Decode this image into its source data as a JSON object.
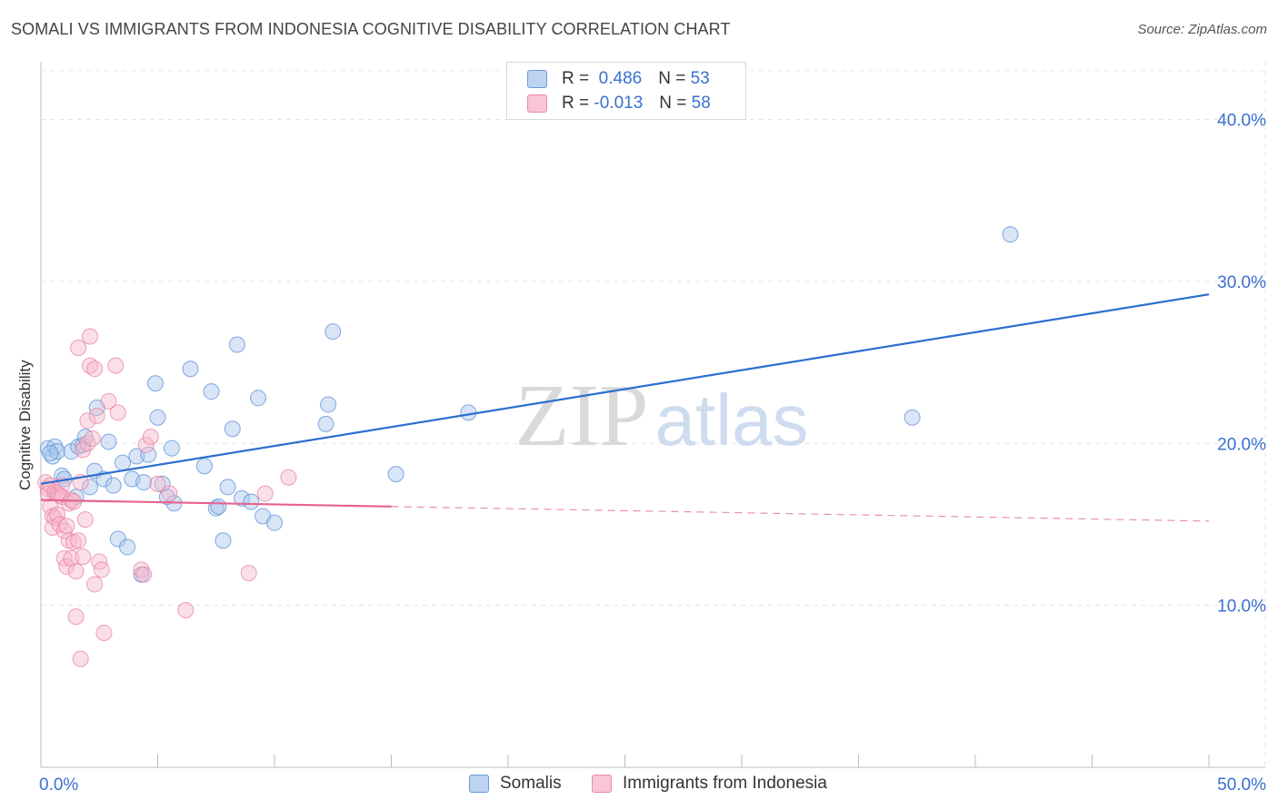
{
  "title": "SOMALI VS IMMIGRANTS FROM INDONESIA COGNITIVE DISABILITY CORRELATION CHART",
  "source": "Source: ZipAtlas.com",
  "watermark": {
    "zip": "ZIP",
    "atlas": "atlas"
  },
  "stats": [
    {
      "r_label": "R =",
      "r_value": "0.486",
      "n_label": "N =",
      "n_value": "53"
    },
    {
      "r_label": "R =",
      "r_value": "-0.013",
      "n_label": "N =",
      "n_value": "58"
    }
  ],
  "chart_data": {
    "type": "scatter",
    "title": "SOMALI VS IMMIGRANTS FROM INDONESIA COGNITIVE DISABILITY CORRELATION CHART",
    "xlabel": "",
    "ylabel": "Cognitive Disability",
    "xlim": [
      0,
      50
    ],
    "ylim": [
      0,
      43
    ],
    "x_tick_labels": [
      "0.0%",
      "50.0%"
    ],
    "y_ticks": [
      10,
      20,
      30,
      40
    ],
    "y_tick_labels": [
      "10.0%",
      "20.0%",
      "30.0%",
      "40.0%"
    ],
    "grid": "horizontal dashed",
    "legend_position": "bottom-center",
    "series": [
      {
        "name": "Somalis",
        "color": "#5b8fd6",
        "fill": "#a8c6ee",
        "points": [
          [
            0.3,
            19.7
          ],
          [
            0.5,
            19.2
          ],
          [
            0.6,
            19.8
          ],
          [
            0.7,
            19.5
          ],
          [
            0.9,
            18.0
          ],
          [
            1.0,
            17.8
          ],
          [
            1.3,
            19.5
          ],
          [
            1.5,
            16.7
          ],
          [
            1.6,
            19.8
          ],
          [
            1.8,
            19.9
          ],
          [
            1.9,
            20.4
          ],
          [
            2.1,
            17.3
          ],
          [
            2.3,
            18.3
          ],
          [
            2.4,
            22.2
          ],
          [
            2.7,
            17.8
          ],
          [
            2.9,
            20.1
          ],
          [
            3.1,
            17.4
          ],
          [
            3.3,
            14.1
          ],
          [
            3.5,
            18.8
          ],
          [
            3.7,
            13.6
          ],
          [
            3.9,
            17.8
          ],
          [
            4.1,
            19.2
          ],
          [
            4.3,
            11.9
          ],
          [
            4.4,
            17.6
          ],
          [
            4.6,
            19.3
          ],
          [
            4.9,
            23.7
          ],
          [
            5.0,
            21.6
          ],
          [
            5.2,
            17.5
          ],
          [
            5.4,
            16.7
          ],
          [
            5.6,
            19.7
          ],
          [
            5.7,
            16.3
          ],
          [
            6.4,
            24.6
          ],
          [
            7.0,
            18.6
          ],
          [
            7.3,
            23.2
          ],
          [
            7.5,
            16.0
          ],
          [
            7.6,
            16.1
          ],
          [
            7.8,
            14.0
          ],
          [
            8.0,
            17.3
          ],
          [
            8.2,
            20.9
          ],
          [
            8.4,
            26.1
          ],
          [
            8.6,
            16.6
          ],
          [
            9.0,
            16.4
          ],
          [
            9.3,
            22.8
          ],
          [
            9.5,
            15.5
          ],
          [
            10.0,
            15.1
          ],
          [
            12.2,
            21.2
          ],
          [
            12.3,
            22.4
          ],
          [
            12.5,
            26.9
          ],
          [
            15.2,
            18.1
          ],
          [
            18.3,
            21.9
          ],
          [
            37.3,
            21.6
          ],
          [
            41.5,
            32.9
          ],
          [
            0.4,
            19.4
          ]
        ],
        "trend": {
          "x": [
            0.0,
            50.0
          ],
          "y": [
            17.5,
            29.2
          ]
        }
      },
      {
        "name": "Immigrants from Indonesia",
        "color": "#e7809f",
        "fill": "#f6b9cb",
        "points": [
          [
            0.2,
            17.6
          ],
          [
            0.3,
            17.2
          ],
          [
            0.3,
            16.9
          ],
          [
            0.4,
            17.4
          ],
          [
            0.4,
            16.1
          ],
          [
            0.5,
            15.5
          ],
          [
            0.5,
            14.8
          ],
          [
            0.6,
            17.0
          ],
          [
            0.6,
            15.4
          ],
          [
            0.7,
            16.9
          ],
          [
            0.7,
            15.6
          ],
          [
            0.8,
            15.0
          ],
          [
            0.8,
            16.8
          ],
          [
            0.9,
            17.4
          ],
          [
            0.9,
            16.7
          ],
          [
            1.0,
            12.9
          ],
          [
            1.0,
            14.6
          ],
          [
            1.1,
            14.9
          ],
          [
            1.1,
            12.4
          ],
          [
            1.2,
            16.3
          ],
          [
            1.2,
            14.0
          ],
          [
            1.3,
            16.5
          ],
          [
            1.3,
            12.9
          ],
          [
            1.4,
            16.4
          ],
          [
            1.4,
            13.9
          ],
          [
            1.5,
            12.1
          ],
          [
            1.5,
            9.3
          ],
          [
            1.6,
            14.0
          ],
          [
            1.6,
            25.9
          ],
          [
            1.7,
            17.6
          ],
          [
            1.7,
            6.7
          ],
          [
            1.8,
            13.0
          ],
          [
            1.8,
            19.6
          ],
          [
            1.9,
            15.3
          ],
          [
            2.0,
            20.0
          ],
          [
            2.0,
            21.4
          ],
          [
            2.1,
            26.6
          ],
          [
            2.1,
            24.8
          ],
          [
            2.2,
            20.3
          ],
          [
            2.3,
            11.3
          ],
          [
            2.3,
            24.6
          ],
          [
            2.4,
            21.7
          ],
          [
            2.5,
            12.7
          ],
          [
            2.6,
            12.2
          ],
          [
            2.7,
            8.3
          ],
          [
            2.9,
            22.6
          ],
          [
            3.2,
            24.8
          ],
          [
            3.3,
            21.9
          ],
          [
            4.3,
            12.2
          ],
          [
            4.4,
            11.9
          ],
          [
            4.5,
            19.9
          ],
          [
            4.7,
            20.4
          ],
          [
            5.0,
            17.5
          ],
          [
            5.5,
            16.9
          ],
          [
            6.2,
            9.7
          ],
          [
            8.9,
            12.0
          ],
          [
            9.6,
            16.9
          ],
          [
            10.6,
            17.9
          ]
        ],
        "trend": {
          "x": [
            0.0,
            15.0
          ],
          "y": [
            16.5,
            16.1
          ]
        },
        "trend_dashed": {
          "x": [
            15.0,
            50.0
          ],
          "y": [
            16.1,
            15.2
          ]
        }
      }
    ]
  }
}
